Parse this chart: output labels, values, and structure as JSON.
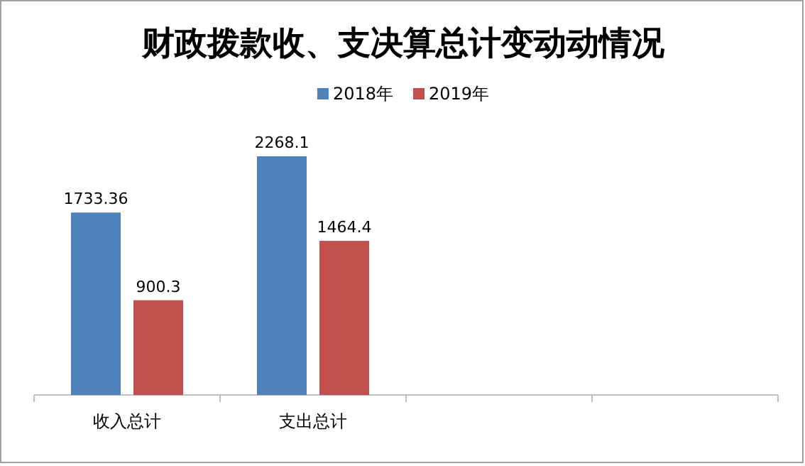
{
  "chart_data": {
    "type": "bar",
    "title": "财政拨款收、支决算总计变动动情况",
    "categories": [
      "收入总计",
      "支出总计",
      null,
      null
    ],
    "series": [
      {
        "name": "2018年",
        "color": "#4f81bd",
        "values": [
          1733.36,
          2268.1,
          null,
          null
        ]
      },
      {
        "name": "2019年",
        "color": "#c0504d",
        "values": [
          900.3,
          1464.4,
          null,
          null
        ]
      }
    ],
    "tick_labels": "x",
    "data_labels": true,
    "legend": "top",
    "grid": false
  }
}
